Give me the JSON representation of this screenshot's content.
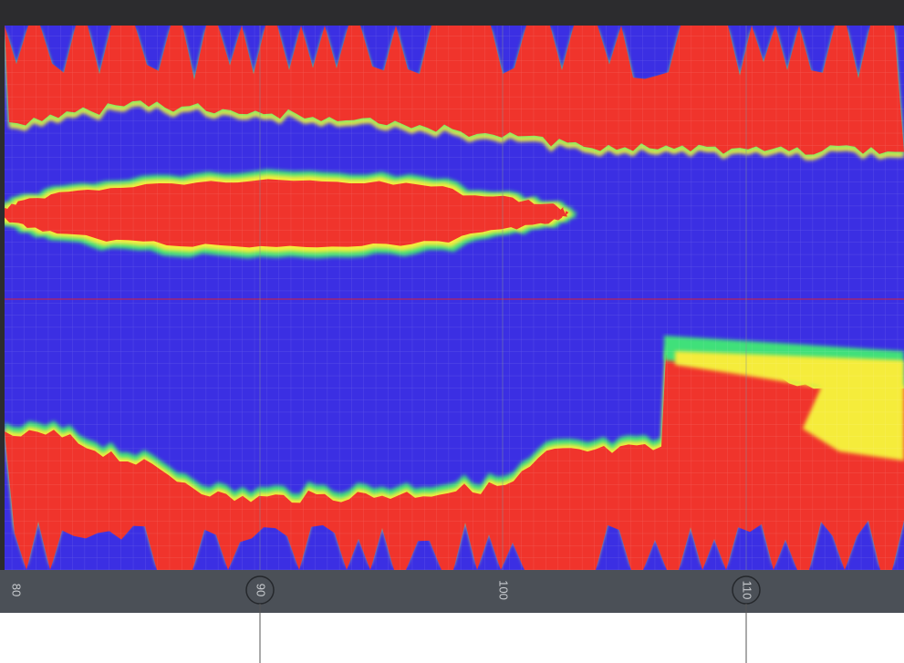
{
  "axis": {
    "labels": [
      "80",
      "90",
      "100",
      "110"
    ]
  }
}
